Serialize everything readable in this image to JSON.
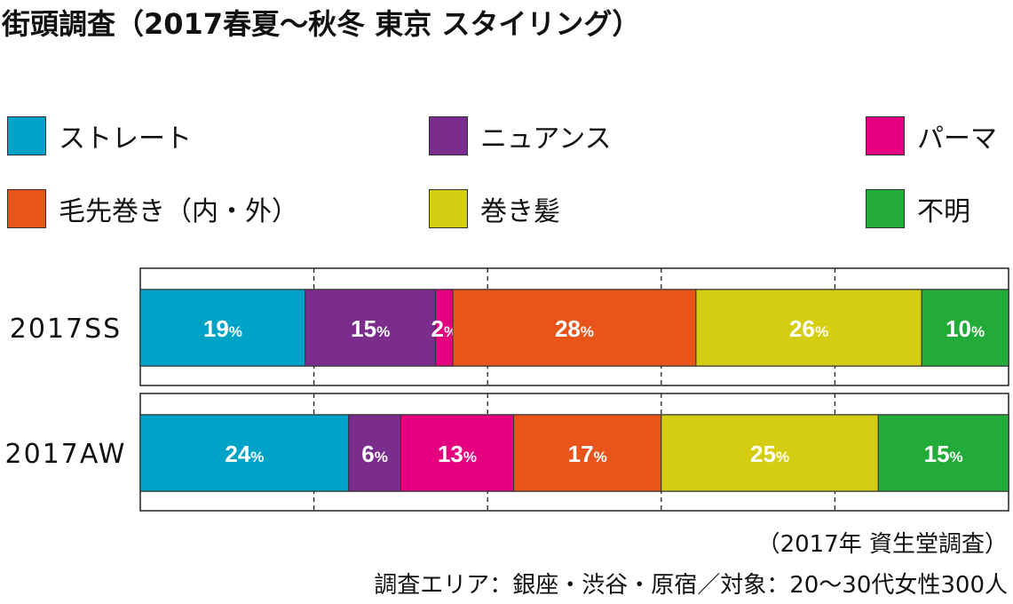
{
  "title": "街頭調査（2017春夏〜秋冬 東京 スタイリング）",
  "legend": [
    {
      "label": "ストレート",
      "color": "#00a3c8"
    },
    {
      "label": "ニュアンス",
      "color": "#7b2d8e"
    },
    {
      "label": "パーマ",
      "color": "#e4007f"
    },
    {
      "label": "毛先巻き（内・外）",
      "color": "#e8541a"
    },
    {
      "label": "巻き髪",
      "color": "#d4cd12"
    },
    {
      "label": "不明",
      "color": "#22ab38"
    }
  ],
  "chart_data": {
    "type": "bar",
    "orientation": "horizontal",
    "stacked": true,
    "categories": [
      "2017SS",
      "2017AW"
    ],
    "series": [
      {
        "name": "ストレート",
        "values": [
          19,
          24
        ]
      },
      {
        "name": "ニュアンス",
        "values": [
          15,
          6
        ]
      },
      {
        "name": "パーマ",
        "values": [
          2,
          13
        ]
      },
      {
        "name": "毛先巻き（内・外）",
        "values": [
          28,
          17
        ]
      },
      {
        "name": "巻き髪",
        "values": [
          26,
          25
        ]
      },
      {
        "name": "不明",
        "values": [
          10,
          15
        ]
      }
    ],
    "value_suffix": "%",
    "xlim": [
      0,
      100
    ],
    "grid": true,
    "legend_position": "top"
  },
  "footer": {
    "source": "（2017年 資生堂調査）",
    "note": "調査エリア：銀座・渋谷・原宿／対象：20〜30代女性300人"
  }
}
